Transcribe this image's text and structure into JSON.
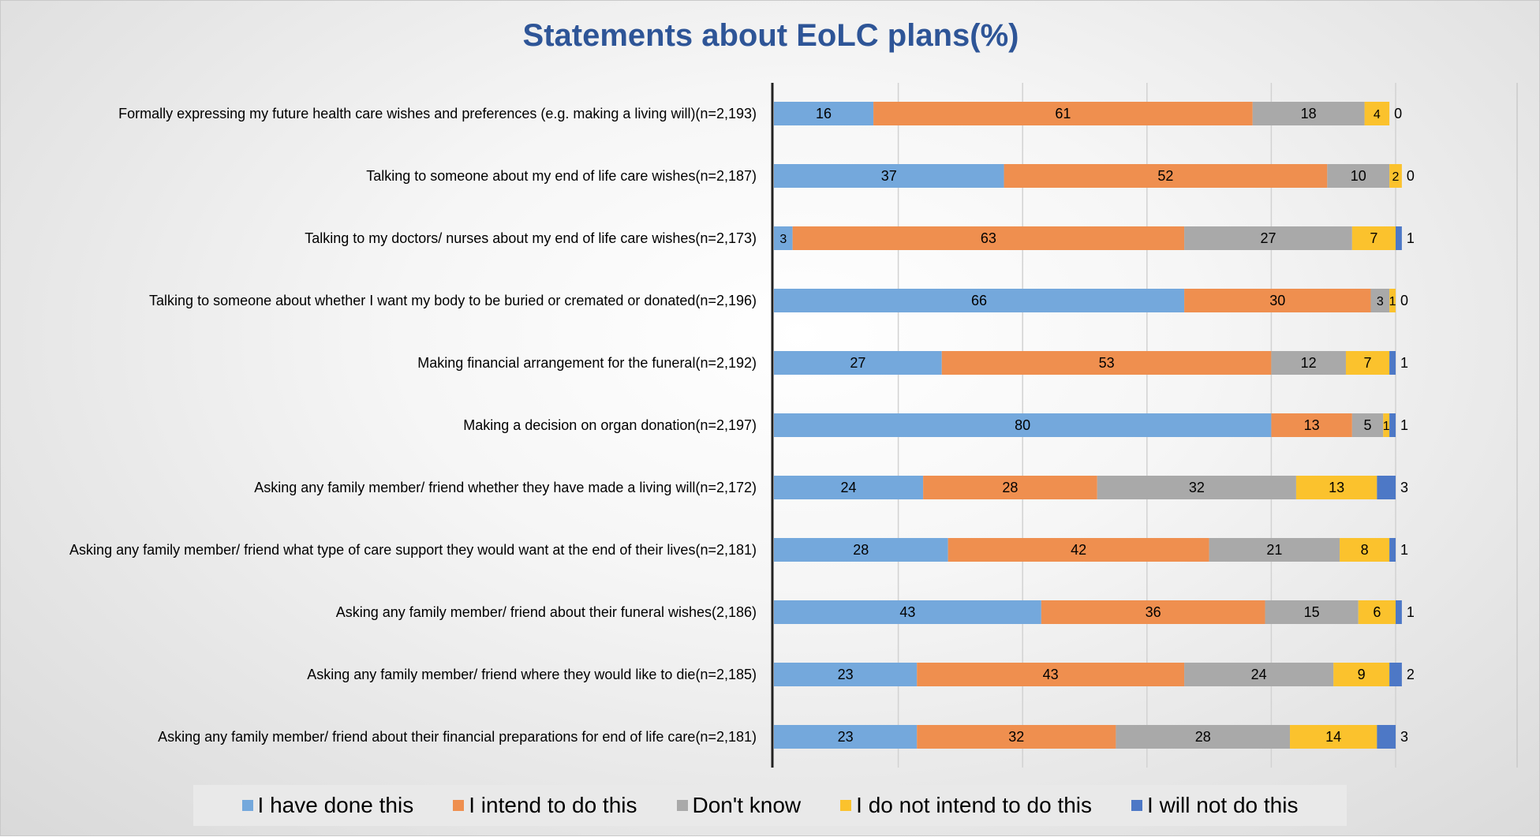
{
  "chart_data": {
    "type": "bar",
    "orientation": "horizontal",
    "stacked": true,
    "title": "Statements about EoLC plans(%)",
    "xlabel": "",
    "ylabel": "",
    "xlim": [
      0,
      100
    ],
    "grid": true,
    "legend_position": "bottom",
    "categories": [
      "Formally expressing my future health care wishes and preferences (e.g. making a living will)(n=2,193)",
      "Talking to someone about my end of life care wishes(n=2,187)",
      "Talking to my doctors/ nurses about my end of life care wishes(n=2,173)",
      "Talking to someone about whether I want my body to be buried or cremated or donated(n=2,196)",
      "Making financial arrangement for the funeral(n=2,192)",
      "Making a decision on organ donation(n=2,197)",
      "Asking any family member/ friend whether they have made a living will(n=2,172)",
      "Asking any family member/ friend what type of care support they would want at the end of their lives(n=2,181)",
      "Asking any family member/ friend about their funeral wishes(2,186)",
      "Asking any family member/ friend where they would like to die(n=2,185)",
      "Asking any family member/ friend about their financial preparations for end of life care(n=2,181)"
    ],
    "series": [
      {
        "name": "I have done this",
        "color": "#74a8dc",
        "values": [
          16,
          37,
          3,
          66,
          27,
          80,
          24,
          28,
          43,
          23,
          23
        ]
      },
      {
        "name": "I intend to do this",
        "color": "#ef8f4f",
        "values": [
          61,
          52,
          63,
          30,
          53,
          13,
          28,
          42,
          36,
          43,
          32
        ]
      },
      {
        "name": "Don't know",
        "color": "#a9a9a9",
        "values": [
          18,
          10,
          27,
          3,
          12,
          5,
          32,
          21,
          15,
          24,
          28
        ]
      },
      {
        "name": "I do not intend to do this",
        "color": "#fbc22d",
        "values": [
          4,
          2,
          7,
          1,
          7,
          1,
          13,
          8,
          6,
          9,
          14
        ]
      },
      {
        "name": "I will not do this",
        "color": "#4d78c6",
        "values": [
          0,
          0,
          1,
          0,
          1,
          1,
          3,
          1,
          1,
          2,
          3
        ]
      }
    ]
  }
}
